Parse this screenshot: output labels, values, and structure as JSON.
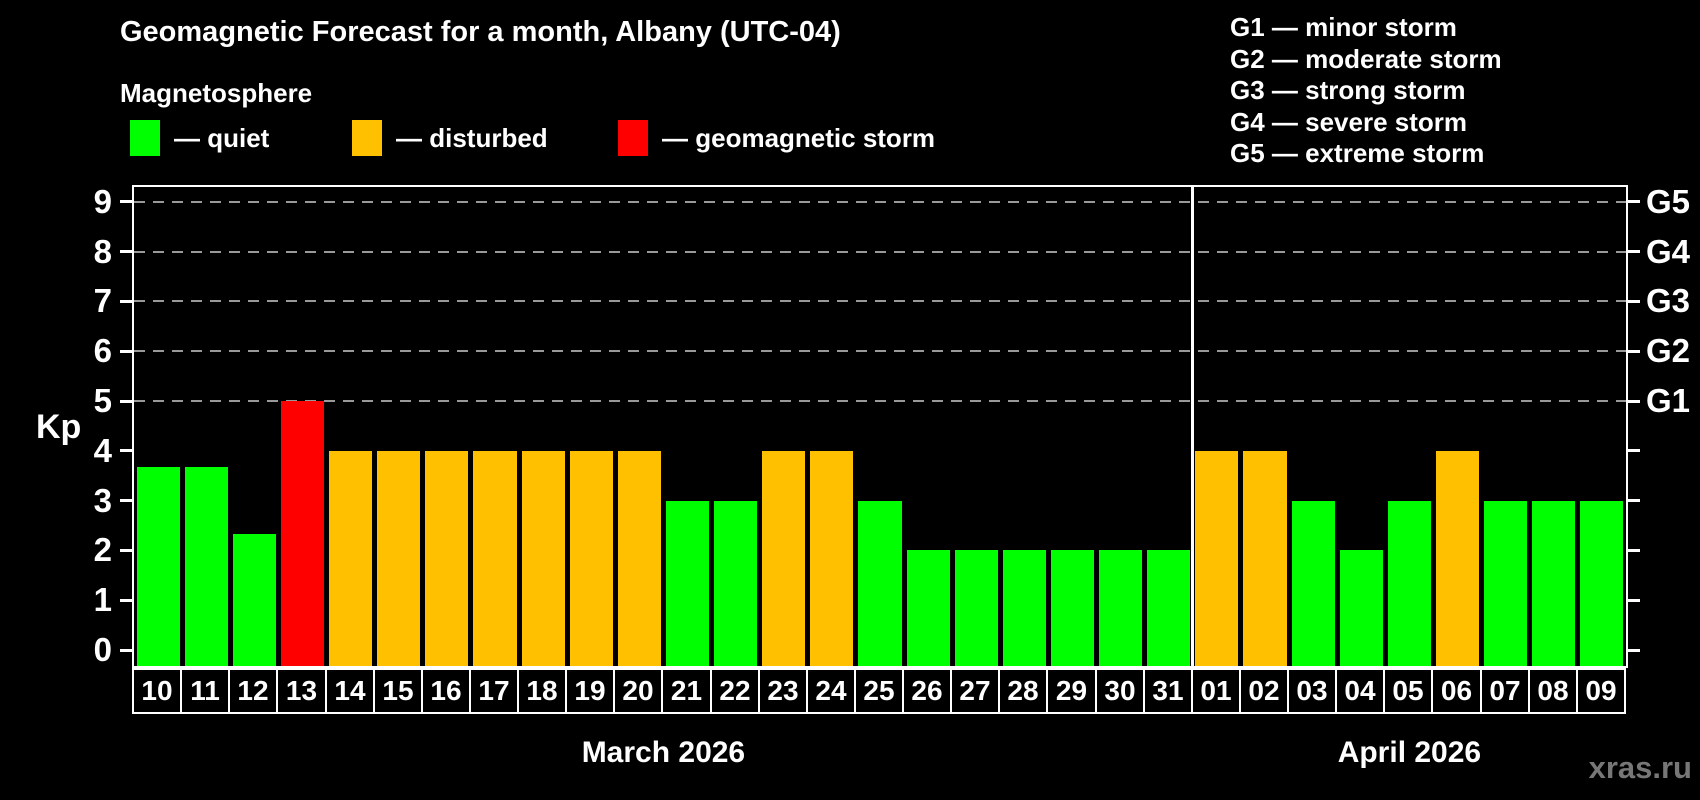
{
  "title": "Geomagnetic Forecast for a month, Albany (UTC-04)",
  "subtitle": "Magnetosphere",
  "dash": "—",
  "watermark": "xras.ru",
  "legend": {
    "items": [
      {
        "name": "quiet",
        "label": "quiet",
        "color": "#00ff00"
      },
      {
        "name": "disturbed",
        "label": "disturbed",
        "color": "#ffc000"
      },
      {
        "name": "storm",
        "label": "geomagnetic storm",
        "color": "#ff0000"
      }
    ]
  },
  "storm_scale_legend": [
    {
      "code": "G1",
      "label": "minor storm"
    },
    {
      "code": "G2",
      "label": "moderate storm"
    },
    {
      "code": "G3",
      "label": "strong storm"
    },
    {
      "code": "G4",
      "label": "severe storm"
    },
    {
      "code": "G5",
      "label": "extreme storm"
    }
  ],
  "chart_data": {
    "type": "bar",
    "title": "Geomagnetic Forecast for a month, Albany (UTC-04)",
    "ylabel": "Kp",
    "xlabel": "",
    "ylim": [
      0,
      9
    ],
    "yticks": [
      0,
      1,
      2,
      3,
      4,
      5,
      6,
      7,
      8,
      9
    ],
    "gridlines_at": [
      5,
      6,
      7,
      8,
      9
    ],
    "grid": "dashed horizontal gray lines at Kp 5-9 only",
    "legend_position": "top-left",
    "right_axis_labels": [
      {
        "value": 5,
        "label": "G1"
      },
      {
        "value": 6,
        "label": "G2"
      },
      {
        "value": 7,
        "label": "G3"
      },
      {
        "value": 8,
        "label": "G4"
      },
      {
        "value": 9,
        "label": "G5"
      }
    ],
    "months": [
      {
        "label": "March 2026",
        "days": 22
      },
      {
        "label": "April 2026",
        "days": 9
      }
    ],
    "categories": [
      "10",
      "11",
      "12",
      "13",
      "14",
      "15",
      "16",
      "17",
      "18",
      "19",
      "20",
      "21",
      "22",
      "23",
      "24",
      "25",
      "26",
      "27",
      "28",
      "29",
      "30",
      "31",
      "01",
      "02",
      "03",
      "04",
      "05",
      "06",
      "07",
      "08",
      "09"
    ],
    "values": [
      3.67,
      3.67,
      2.33,
      5,
      4,
      4,
      4,
      4,
      4,
      4,
      4,
      3,
      3,
      4,
      4,
      3,
      2,
      2,
      2,
      2,
      2,
      2,
      4,
      4,
      3,
      2,
      3,
      4,
      3,
      3,
      3
    ],
    "statuses": [
      "quiet",
      "quiet",
      "quiet",
      "storm",
      "disturbed",
      "disturbed",
      "disturbed",
      "disturbed",
      "disturbed",
      "disturbed",
      "disturbed",
      "quiet",
      "quiet",
      "disturbed",
      "disturbed",
      "quiet",
      "quiet",
      "quiet",
      "quiet",
      "quiet",
      "quiet",
      "quiet",
      "disturbed",
      "disturbed",
      "quiet",
      "quiet",
      "quiet",
      "disturbed",
      "quiet",
      "quiet",
      "quiet"
    ],
    "status_colors": {
      "quiet": "#00ff00",
      "disturbed": "#ffc000",
      "storm": "#ff0000"
    },
    "month_separator_color": "#ffffff"
  }
}
